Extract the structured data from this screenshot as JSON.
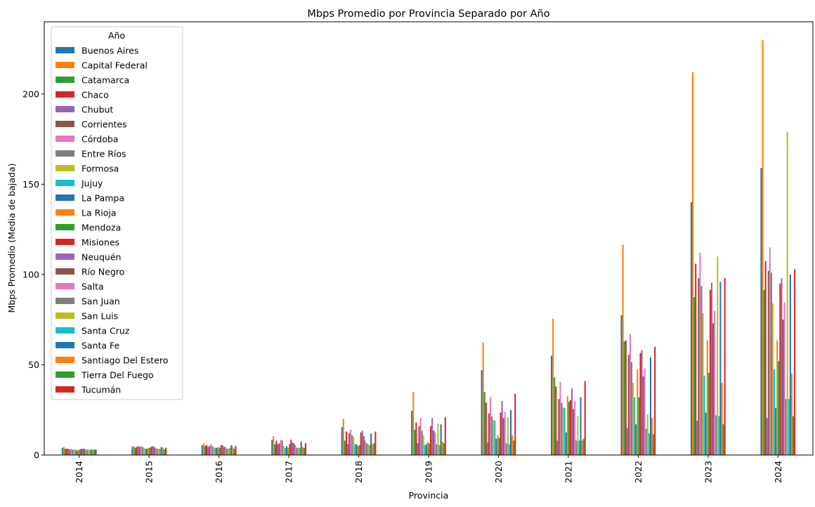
{
  "chart_data": {
    "type": "bar",
    "title": "Mbps Promedio por Provincia Separado por Año",
    "xlabel": "Provincia",
    "ylabel": "Mbps Promedio (Media de bajada)",
    "ylim": [
      0,
      240
    ],
    "yticks": [
      0,
      50,
      100,
      150,
      200
    ],
    "grid": false,
    "legend_title": "Año",
    "legend_position": "top-left",
    "categories": [
      "2014",
      "2015",
      "2016",
      "2017",
      "2018",
      "2019",
      "2020",
      "2021",
      "2022",
      "2023",
      "2024"
    ],
    "series": [
      {
        "name": "Buenos Aires",
        "color": "#1f77b4",
        "values": [
          4,
          4.5,
          5.5,
          8.5,
          15.5,
          24.5,
          47,
          55,
          77.5,
          140,
          159
        ]
      },
      {
        "name": "Capital Federal",
        "color": "#ff7f0e",
        "values": [
          4.5,
          5,
          6.5,
          10.5,
          20,
          35,
          62.5,
          75.5,
          116.5,
          212,
          230
        ]
      },
      {
        "name": "Catamarca",
        "color": "#2ca02c",
        "values": [
          3.5,
          4,
          5,
          6,
          8,
          14,
          35,
          43,
          63,
          87.5,
          91.5
        ]
      },
      {
        "name": "Chaco",
        "color": "#d62728",
        "values": [
          3.5,
          4.5,
          5.5,
          8,
          13,
          18,
          29,
          38,
          63.5,
          106,
          107.5
        ]
      },
      {
        "name": "Chubut",
        "color": "#9467bd",
        "values": [
          3.5,
          5,
          4.5,
          6,
          6,
          6.5,
          7,
          8,
          15,
          19,
          20.5
        ]
      },
      {
        "name": "Corrientes",
        "color": "#8c564b",
        "values": [
          3,
          4.5,
          5,
          6.5,
          12,
          16,
          23,
          31,
          55.5,
          98,
          102
        ]
      },
      {
        "name": "Córdoba",
        "color": "#e377c2",
        "values": [
          3.5,
          5,
          6,
          8.5,
          14,
          20.5,
          32,
          40.5,
          67,
          112,
          115
        ]
      },
      {
        "name": "Entre Ríos",
        "color": "#7f7f7f",
        "values": [
          3,
          4.5,
          5,
          8,
          11,
          13.5,
          21.5,
          29,
          51.5,
          93.5,
          101
        ]
      },
      {
        "name": "Formosa",
        "color": "#bcbd22",
        "values": [
          3,
          4,
          4.5,
          5,
          10,
          11,
          19.5,
          26.5,
          40,
          78.5,
          84
        ]
      },
      {
        "name": "Jujuy",
        "color": "#17becf",
        "values": [
          3,
          3.5,
          4,
          4,
          6,
          5.5,
          19,
          26,
          32,
          44,
          47.5
        ]
      },
      {
        "name": "La Pampa",
        "color": "#1f77b4",
        "values": [
          2.5,
          3.5,
          4,
          5,
          6,
          6,
          9,
          12.5,
          17,
          23.5,
          26
        ]
      },
      {
        "name": "La Rioja",
        "color": "#ff7f0e",
        "values": [
          3,
          4,
          4.5,
          4,
          5,
          7,
          11,
          32.5,
          47.5,
          63.5,
          63.5
        ]
      },
      {
        "name": "Mendoza",
        "color": "#2ca02c",
        "values": [
          3,
          4,
          4,
          6,
          5.5,
          6.5,
          9.5,
          29.5,
          32,
          45.5,
          52
        ]
      },
      {
        "name": "Misiones",
        "color": "#d62728",
        "values": [
          3.5,
          4.5,
          5.5,
          8.5,
          12.5,
          16,
          23.5,
          30.5,
          56.5,
          91.5,
          95
        ]
      },
      {
        "name": "Neuquén",
        "color": "#9467bd",
        "values": [
          3.5,
          5,
          5.5,
          7,
          13.5,
          20.5,
          30,
          37,
          58,
          95.5,
          98
        ]
      },
      {
        "name": "Río Negro",
        "color": "#8c564b",
        "values": [
          3.5,
          4.5,
          4.5,
          6.5,
          10.5,
          13.5,
          20.5,
          25.5,
          43.5,
          73,
          75
        ]
      },
      {
        "name": "Salta",
        "color": "#e377c2",
        "values": [
          3,
          4,
          4.5,
          5.5,
          8,
          12.5,
          24,
          30,
          48,
          80,
          84.5
        ]
      },
      {
        "name": "San Juan",
        "color": "#7f7f7f",
        "values": [
          3,
          3.5,
          3.5,
          4,
          6.5,
          6,
          6.5,
          8,
          14.5,
          22,
          31
        ]
      },
      {
        "name": "San Luis",
        "color": "#bcbd22",
        "values": [
          3,
          3.5,
          3.5,
          4,
          6,
          17.5,
          21,
          21.5,
          22.5,
          110,
          179
        ]
      },
      {
        "name": "Santa Cruz",
        "color": "#17becf",
        "values": [
          3,
          3.5,
          4,
          4,
          5.5,
          5.5,
          6,
          8,
          12,
          21.5,
          31
        ]
      },
      {
        "name": "Santa Fe",
        "color": "#1f77b4",
        "values": [
          3,
          4.5,
          5.5,
          7.5,
          12,
          17,
          25,
          32,
          54,
          96,
          100
        ]
      },
      {
        "name": "Santiago Del Estero",
        "color": "#ff7f0e",
        "values": [
          3,
          4,
          4.5,
          4.5,
          6,
          7.5,
          11,
          8,
          20.5,
          40,
          45
        ]
      },
      {
        "name": "Tierra Del Fuego",
        "color": "#2ca02c",
        "values": [
          3,
          3,
          3.5,
          4,
          6.5,
          6.5,
          8,
          9,
          11.5,
          17,
          21.5
        ]
      },
      {
        "name": "Tucumán",
        "color": "#d62728",
        "values": [
          3,
          4,
          5,
          6.5,
          13,
          21,
          34,
          41,
          60,
          98,
          103
        ]
      }
    ]
  }
}
